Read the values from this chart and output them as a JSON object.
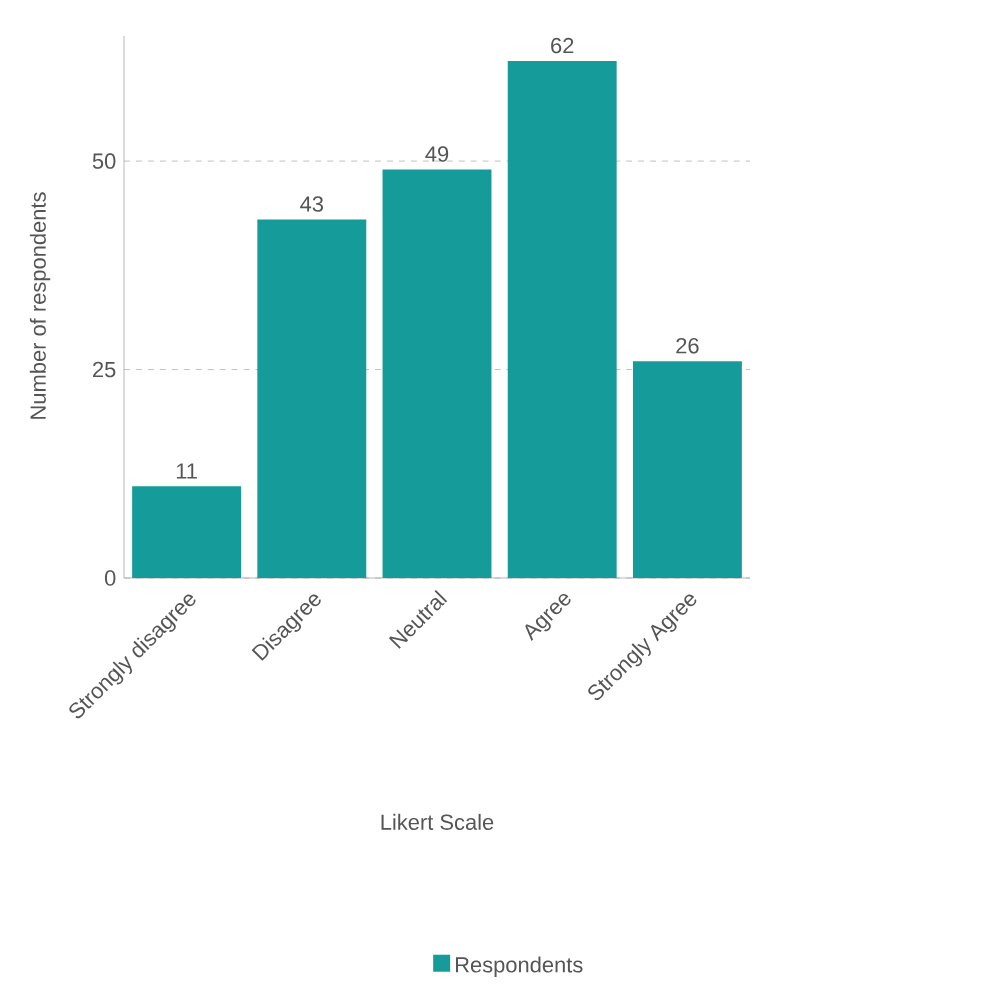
{
  "chart_data": {
    "type": "bar",
    "categories": [
      "Strongly disagree",
      "Disagree",
      "Neutral",
      "Agree",
      "Strongly Agree"
    ],
    "series": [
      {
        "name": "Respondents",
        "color": "#169b9b",
        "values": [
          11,
          43,
          49,
          62,
          26
        ]
      }
    ],
    "xlabel": "Likert Scale",
    "ylabel": "Number of respondents",
    "ylim": [
      0,
      65
    ],
    "yticks": [
      0,
      25,
      50
    ],
    "grid": "y",
    "data_labels": true,
    "legend": "bottom"
  }
}
